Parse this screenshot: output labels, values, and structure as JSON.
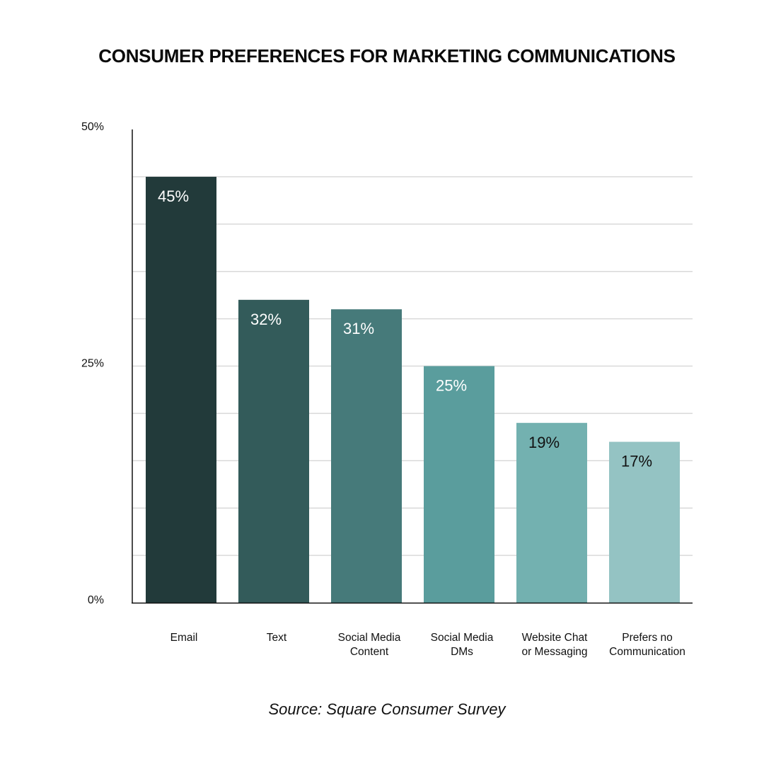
{
  "chart_data": {
    "type": "bar",
    "title": "CONSUMER PREFERENCES FOR MARKETING COMMUNICATIONS",
    "categories": [
      [
        "Email"
      ],
      [
        "Text"
      ],
      [
        "Social Media",
        "Content"
      ],
      [
        "Social Media",
        "DMs"
      ],
      [
        "Website Chat",
        "or Messaging"
      ],
      [
        "Prefers no",
        "Communication"
      ]
    ],
    "values": [
      45,
      32,
      31,
      25,
      19,
      17
    ],
    "value_labels": [
      "45%",
      "32%",
      "31%",
      "25%",
      "19%",
      "17%"
    ],
    "bar_colors": [
      "#223a3a",
      "#335b5a",
      "#467a7a",
      "#5a9d9d",
      "#73b1b0",
      "#94c3c3"
    ],
    "label_colors": [
      "#ffffff",
      "#ffffff",
      "#ffffff",
      "#ffffff",
      "#111111",
      "#111111"
    ],
    "ylim": [
      0,
      50
    ],
    "y_ticks": [
      {
        "value": 0,
        "label": "0%"
      },
      {
        "value": 25,
        "label": "25%"
      },
      {
        "value": 50,
        "label": "50%"
      }
    ],
    "gridlines": [
      5,
      10,
      15,
      20,
      25,
      30,
      35,
      40,
      45
    ],
    "grid": true,
    "xlabel": "",
    "ylabel": "",
    "source": "Source: Square Consumer Survey"
  }
}
